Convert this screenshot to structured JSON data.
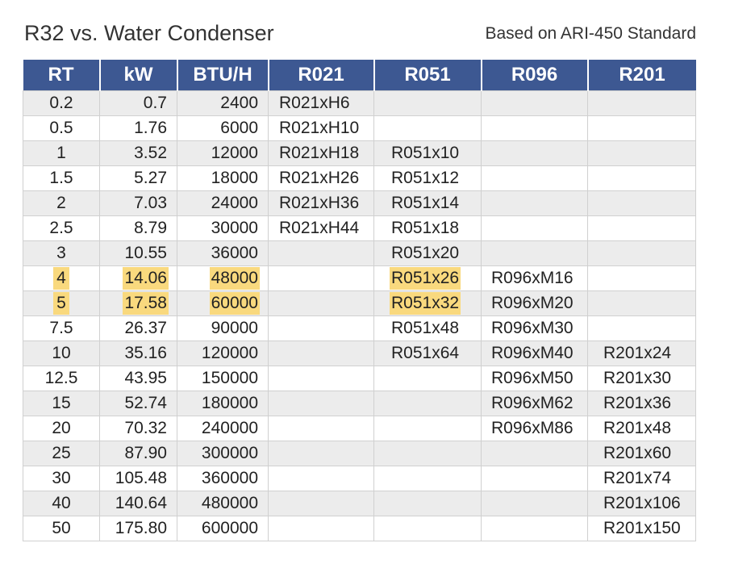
{
  "header": {
    "title": "R32 vs. Water Condenser",
    "standard": "Based on ARI-450 Standard"
  },
  "table": {
    "columns": [
      "RT",
      "kW",
      "BTU/H",
      "R021",
      "R051",
      "R096",
      "R201"
    ],
    "highlight_color": "#f9d97e",
    "header_color": "#3d5892",
    "rows": [
      {
        "rt": "0.2",
        "kw": "0.7",
        "btu": "2400",
        "r021": "R021xH6",
        "r051": "",
        "r096": "",
        "r201": "",
        "highlight": false
      },
      {
        "rt": "0.5",
        "kw": "1.76",
        "btu": "6000",
        "r021": "R021xH10",
        "r051": "",
        "r096": "",
        "r201": "",
        "highlight": false
      },
      {
        "rt": "1",
        "kw": "3.52",
        "btu": "12000",
        "r021": "R021xH18",
        "r051": "R051x10",
        "r096": "",
        "r201": "",
        "highlight": false
      },
      {
        "rt": "1.5",
        "kw": "5.27",
        "btu": "18000",
        "r021": "R021xH26",
        "r051": "R051x12",
        "r096": "",
        "r201": "",
        "highlight": false
      },
      {
        "rt": "2",
        "kw": "7.03",
        "btu": "24000",
        "r021": "R021xH36",
        "r051": "R051x14",
        "r096": "",
        "r201": "",
        "highlight": false
      },
      {
        "rt": "2.5",
        "kw": "8.79",
        "btu": "30000",
        "r021": "R021xH44",
        "r051": "R051x18",
        "r096": "",
        "r201": "",
        "highlight": false
      },
      {
        "rt": "3",
        "kw": "10.55",
        "btu": "36000",
        "r021": "",
        "r051": "R051x20",
        "r096": "",
        "r201": "",
        "highlight": false
      },
      {
        "rt": "4",
        "kw": "14.06",
        "btu": "48000",
        "r021": "",
        "r051": "R051x26",
        "r096": "R096xM16",
        "r201": "",
        "highlight": true
      },
      {
        "rt": "5",
        "kw": "17.58",
        "btu": "60000",
        "r021": "",
        "r051": "R051x32",
        "r096": "R096xM20",
        "r201": "",
        "highlight": true
      },
      {
        "rt": "7.5",
        "kw": "26.37",
        "btu": "90000",
        "r021": "",
        "r051": "R051x48",
        "r096": "R096xM30",
        "r201": "",
        "highlight": false
      },
      {
        "rt": "10",
        "kw": "35.16",
        "btu": "120000",
        "r021": "",
        "r051": "R051x64",
        "r096": "R096xM40",
        "r201": "R201x24",
        "highlight": false
      },
      {
        "rt": "12.5",
        "kw": "43.95",
        "btu": "150000",
        "r021": "",
        "r051": "",
        "r096": "R096xM50",
        "r201": "R201x30",
        "highlight": false
      },
      {
        "rt": "15",
        "kw": "52.74",
        "btu": "180000",
        "r021": "",
        "r051": "",
        "r096": "R096xM62",
        "r201": "R201x36",
        "highlight": false
      },
      {
        "rt": "20",
        "kw": "70.32",
        "btu": "240000",
        "r021": "",
        "r051": "",
        "r096": "R096xM86",
        "r201": "R201x48",
        "highlight": false
      },
      {
        "rt": "25",
        "kw": "87.90",
        "btu": "300000",
        "r021": "",
        "r051": "",
        "r096": "",
        "r201": "R201x60",
        "highlight": false
      },
      {
        "rt": "30",
        "kw": "105.48",
        "btu": "360000",
        "r021": "",
        "r051": "",
        "r096": "",
        "r201": "R201x74",
        "highlight": false
      },
      {
        "rt": "40",
        "kw": "140.64",
        "btu": "480000",
        "r021": "",
        "r051": "",
        "r096": "",
        "r201": "R201x106",
        "highlight": false
      },
      {
        "rt": "50",
        "kw": "175.80",
        "btu": "600000",
        "r021": "",
        "r051": "",
        "r096": "",
        "r201": "R201x150",
        "highlight": false
      }
    ]
  }
}
